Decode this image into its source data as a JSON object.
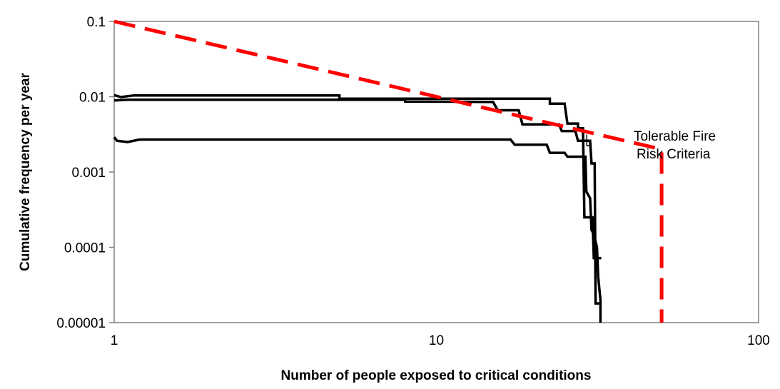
{
  "chart_data": {
    "type": "line",
    "title": "",
    "xlabel": "Number of people exposed to critical conditions",
    "ylabel": "Cumulative frequency per year",
    "x_scale": "log",
    "y_scale": "log",
    "xlim": [
      1,
      100
    ],
    "ylim": [
      1e-05,
      0.1
    ],
    "x_ticks": [
      "1",
      "10",
      "100"
    ],
    "y_ticks": [
      "0.1",
      "0.01",
      "0.001",
      "0.0001",
      "0.00001"
    ],
    "grid": false,
    "legend": "none",
    "annotation": {
      "lines": [
        "Tolerable Fire",
        "Risk Criteria"
      ],
      "points_to": [
        29,
        0.003
      ]
    },
    "criteria": {
      "color": "#ff0000",
      "style": "dashed",
      "points": [
        [
          1,
          0.1
        ],
        [
          50,
          0.002
        ],
        [
          50,
          1e-05
        ]
      ]
    },
    "series": [
      {
        "color": "#000000",
        "points": [
          [
            1,
            0.0105
          ],
          [
            1.05,
            0.0099
          ],
          [
            1.15,
            0.0104
          ],
          [
            5.0,
            0.0104
          ],
          [
            5.0,
            0.0094
          ],
          [
            22.5,
            0.0094
          ],
          [
            22.5,
            0.0081
          ],
          [
            25.0,
            0.0081
          ],
          [
            25.5,
            0.0044
          ],
          [
            27.5,
            0.0044
          ],
          [
            27.5,
            0.0038
          ],
          [
            28.5,
            0.0038
          ],
          [
            28.8,
            0.00025
          ],
          [
            30.5,
            0.00025
          ],
          [
            30.8,
            7.2e-05
          ],
          [
            32.5,
            7.2e-05
          ]
        ]
      },
      {
        "color": "#000000",
        "points": [
          [
            1,
            0.0089
          ],
          [
            1.1,
            0.0091
          ],
          [
            8.0,
            0.0091
          ],
          [
            8.0,
            0.0086
          ],
          [
            10.0,
            0.0086
          ],
          [
            15.0,
            0.0085
          ],
          [
            15.5,
            0.0066
          ],
          [
            18.0,
            0.0066
          ],
          [
            18.5,
            0.0043
          ],
          [
            24.0,
            0.0043
          ],
          [
            24.5,
            0.0035
          ],
          [
            27.0,
            0.0035
          ],
          [
            27.5,
            0.0026
          ],
          [
            30.0,
            0.0026
          ],
          [
            30.3,
            0.0013
          ],
          [
            31.0,
            0.0013
          ],
          [
            31.2,
            1.8e-05
          ],
          [
            32.0,
            1.8e-05
          ]
        ]
      },
      {
        "color": "#000000",
        "points": [
          [
            1,
            0.0029
          ],
          [
            1.02,
            0.0026
          ],
          [
            1.1,
            0.0025
          ],
          [
            1.2,
            0.0027
          ],
          [
            17.0,
            0.0027
          ],
          [
            17.5,
            0.0023
          ],
          [
            22.0,
            0.0023
          ],
          [
            22.5,
            0.0018
          ],
          [
            25.0,
            0.0018
          ],
          [
            25.5,
            0.0016
          ],
          [
            29.0,
            0.0016
          ],
          [
            29.2,
            0.00055
          ],
          [
            30.0,
            0.00045
          ],
          [
            30.3,
            0.00017
          ],
          [
            30.8,
            0.00015
          ],
          [
            31.5,
            0.0001
          ],
          [
            31.8,
            4e-05
          ],
          [
            32.3,
            2e-05
          ],
          [
            32.3,
            1e-05
          ]
        ]
      }
    ]
  }
}
